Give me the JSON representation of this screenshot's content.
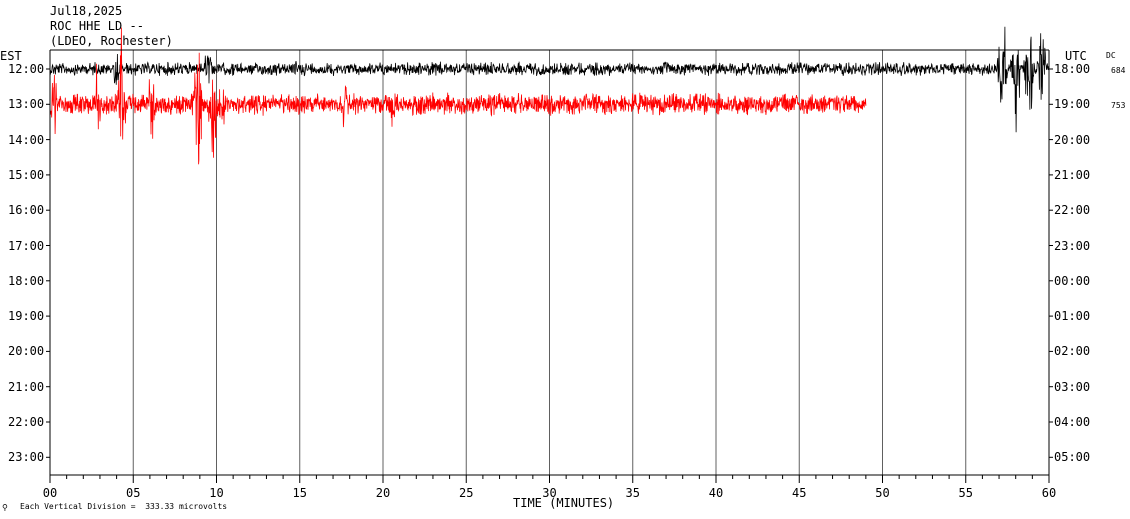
{
  "header": {
    "date": "Jul18,2025",
    "station": "ROC HHE LD --",
    "network": "(LDEO, Rochester)"
  },
  "left_tz": "EST",
  "right_tz": "UTC",
  "dc_label": "DC",
  "dc_values": [
    "684",
    "753"
  ],
  "footer_mark": "⚲",
  "footer_note": "Each Vertical Division =  333.33 microvolts",
  "chart_data": {
    "type": "line",
    "title": "",
    "xlabel": "TIME (MINUTES)",
    "ylabel": "",
    "xlim": [
      0,
      60
    ],
    "x_ticks": [
      "00",
      "05",
      "10",
      "15",
      "20",
      "25",
      "30",
      "35",
      "40",
      "45",
      "50",
      "55",
      "60"
    ],
    "x_minor_tick_step_minutes": 1,
    "vertical_gridlines_minutes": [
      5,
      10,
      15,
      20,
      25,
      30,
      35,
      40,
      45,
      50,
      55
    ],
    "left_hours": [
      "12:00",
      "13:00",
      "14:00",
      "15:00",
      "16:00",
      "17:00",
      "18:00",
      "19:00",
      "20:00",
      "21:00",
      "22:00",
      "23:00"
    ],
    "right_hours": [
      "18:00",
      "19:00",
      "20:00",
      "21:00",
      "22:00",
      "23:00",
      "00:00",
      "01:00",
      "02:00",
      "03:00",
      "04:00",
      "05:00"
    ],
    "series": [
      {
        "hour_row": 0,
        "color": "#000000",
        "end_minute": 60,
        "base_amplitude": "low",
        "bursts": [
          {
            "minute": 57.2,
            "amplitude": "very large"
          },
          {
            "minute": 58.0,
            "amplitude": "very large"
          },
          {
            "minute": 58.8,
            "amplitude": "very large"
          },
          {
            "minute": 59.6,
            "amplitude": "very large"
          },
          {
            "minute": 4.0,
            "amplitude": "medium"
          },
          {
            "minute": 9.5,
            "amplitude": "medium"
          },
          {
            "minute": 14.8,
            "amplitude": "small"
          }
        ]
      },
      {
        "hour_row": 1,
        "color": "#ff0000",
        "end_minute": 49,
        "base_amplitude": "medium",
        "bursts": [
          {
            "minute": 0.2,
            "amplitude": "large"
          },
          {
            "minute": 2.8,
            "amplitude": "large"
          },
          {
            "minute": 4.3,
            "amplitude": "very large"
          },
          {
            "minute": 6.1,
            "amplitude": "large"
          },
          {
            "minute": 8.9,
            "amplitude": "very large"
          },
          {
            "minute": 9.8,
            "amplitude": "very large"
          },
          {
            "minute": 10.3,
            "amplitude": "large"
          },
          {
            "minute": 17.7,
            "amplitude": "medium"
          },
          {
            "minute": 20.6,
            "amplitude": "medium"
          }
        ]
      }
    ]
  }
}
